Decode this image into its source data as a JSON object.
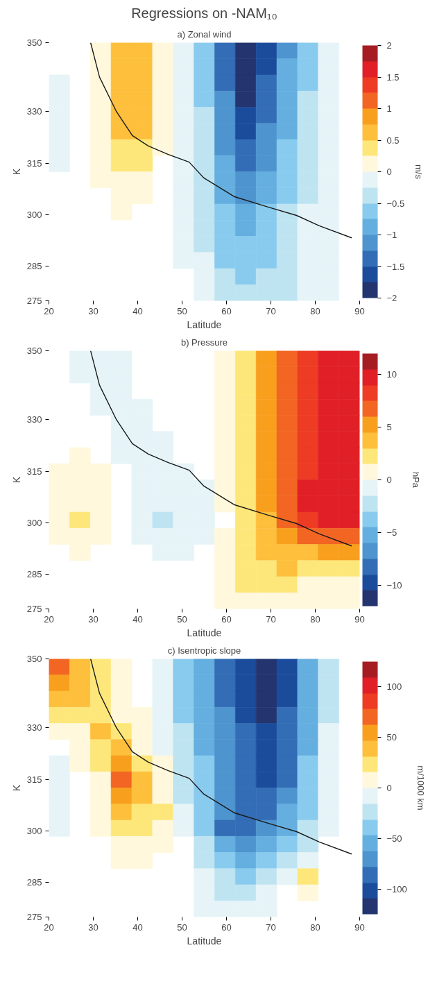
{
  "chart_data": [
    {
      "type": "heatmap",
      "title": "Regressions on -NAM₁₀",
      "subtitle": "a) Zonal wind",
      "xlabel": "Latitude",
      "ylabel": "K",
      "clabel": "m/s",
      "x": [
        22.33,
        27,
        31.67,
        36.33,
        41,
        45.67,
        50.33,
        55,
        59.67,
        64.33,
        69,
        73.67,
        78.33,
        83,
        87.67
      ],
      "y": [
        347.66,
        342.97,
        338.28,
        333.59,
        328.91,
        324.22,
        319.53,
        314.84,
        310.16,
        305.47,
        300.78,
        296.09,
        291.41,
        286.72,
        282.03,
        277.34
      ],
      "xlim": [
        20,
        90
      ],
      "xticks": [
        20,
        30,
        40,
        50,
        60,
        70,
        80,
        90
      ],
      "ylim": [
        275,
        350
      ],
      "yticks": [
        275,
        285,
        300,
        315,
        330,
        350
      ],
      "clim": [
        -2,
        2
      ],
      "cticks": [
        -2,
        -1.5,
        -1,
        -0.5,
        0,
        0.5,
        1,
        1.5,
        2
      ],
      "colors": [
        "#24346f",
        "#1b4c9c",
        "#336db6",
        "#4e94cf",
        "#64afdf",
        "#89cbee",
        "#bfe4f1",
        "#e6f4f8",
        "#fff8dc",
        "#fee77a",
        "#fdbf3c",
        "#f8a01e",
        "#f26522",
        "#ee3b24",
        "#e11f26",
        "#a51d22"
      ],
      "cells": [
        [
          null,
          null,
          0.15,
          0.65,
          0.6,
          0.05,
          -0.1,
          -0.6,
          -1.4,
          -2.1,
          -1.7,
          -1.05,
          -0.55,
          -0.2,
          null
        ],
        [
          null,
          null,
          0.15,
          0.65,
          0.6,
          0.05,
          -0.1,
          -0.58,
          -1.35,
          -2.0,
          -1.6,
          -1.0,
          -0.55,
          -0.2,
          null
        ],
        [
          -0.1,
          null,
          0.15,
          0.65,
          0.6,
          0.05,
          -0.1,
          -0.55,
          -1.3,
          -1.9,
          -1.5,
          -0.95,
          -0.52,
          -0.18,
          null
        ],
        [
          -0.1,
          null,
          0.15,
          0.65,
          0.6,
          0.05,
          -0.1,
          -0.52,
          -1.25,
          -1.8,
          -1.42,
          -0.9,
          -0.5,
          -0.18,
          null
        ],
        [
          -0.1,
          null,
          0.15,
          0.65,
          0.6,
          0.05,
          -0.1,
          -0.5,
          -1.2,
          -1.7,
          -1.35,
          -0.85,
          -0.5,
          -0.15,
          null
        ],
        [
          -0.1,
          null,
          0.15,
          0.55,
          0.5,
          0.05,
          -0.1,
          -0.48,
          -1.12,
          -1.6,
          -1.25,
          -0.8,
          -0.45,
          -0.15,
          null
        ],
        [
          -0.1,
          null,
          0.15,
          0.45,
          0.4,
          0.05,
          -0.1,
          -0.45,
          -1.05,
          -1.45,
          -1.15,
          -0.75,
          -0.42,
          -0.15,
          null
        ],
        [
          -0.05,
          null,
          0.15,
          0.3,
          0.3,
          null,
          -0.1,
          -0.42,
          -0.98,
          -1.3,
          -1.05,
          -0.68,
          -0.38,
          -0.15,
          null
        ],
        [
          null,
          null,
          0.1,
          0.2,
          0.15,
          null,
          -0.1,
          -0.4,
          -0.9,
          -1.15,
          -0.95,
          -0.6,
          -0.35,
          -0.15,
          null
        ],
        [
          null,
          null,
          null,
          0.1,
          0.05,
          null,
          -0.1,
          -0.38,
          -0.82,
          -1.05,
          -0.85,
          -0.52,
          -0.3,
          -0.15,
          null
        ],
        [
          null,
          null,
          null,
          0.05,
          null,
          null,
          -0.1,
          -0.35,
          -0.75,
          -0.95,
          -0.75,
          -0.45,
          -0.25,
          -0.15,
          null
        ],
        [
          null,
          null,
          null,
          null,
          null,
          null,
          -0.1,
          -0.32,
          -0.68,
          -0.85,
          -0.68,
          -0.4,
          -0.22,
          -0.15,
          null
        ],
        [
          null,
          null,
          null,
          null,
          null,
          null,
          -0.05,
          -0.3,
          -0.6,
          -0.72,
          -0.6,
          -0.35,
          -0.2,
          -0.15,
          null
        ],
        [
          null,
          null,
          null,
          null,
          null,
          null,
          -0.05,
          -0.25,
          -0.52,
          -0.65,
          -0.52,
          -0.32,
          -0.2,
          -0.15,
          null
        ],
        [
          null,
          null,
          null,
          null,
          null,
          null,
          null,
          -0.2,
          -0.45,
          -0.55,
          -0.45,
          -0.3,
          -0.2,
          -0.15,
          null
        ],
        [
          null,
          null,
          null,
          null,
          null,
          null,
          null,
          -0.15,
          -0.4,
          -0.48,
          -0.4,
          -0.3,
          -0.2,
          -0.15,
          null
        ]
      ],
      "series": [
        {
          "type": "line",
          "color": "#1a1a1a",
          "x": [
            29.4,
            31.4,
            35.2,
            38.8,
            42.4,
            46.9,
            51.6,
            54.9,
            61.7,
            69.5,
            75.8,
            80.9,
            88.2
          ],
          "values": [
            350,
            340,
            330,
            323,
            320,
            317.5,
            315.3,
            310.7,
            305.3,
            302.2,
            299.8,
            296.8,
            293.3
          ]
        }
      ]
    },
    {
      "type": "heatmap",
      "title": "b) Pressure",
      "xlabel": "Latitude",
      "ylabel": "K",
      "clabel": "hPa",
      "x": [
        22.33,
        27,
        31.67,
        36.33,
        41,
        45.67,
        50.33,
        55,
        59.67,
        64.33,
        69,
        73.67,
        78.33,
        83,
        87.67
      ],
      "y": [
        347.66,
        342.97,
        338.28,
        333.59,
        328.91,
        324.22,
        319.53,
        314.84,
        310.16,
        305.47,
        300.78,
        296.09,
        291.41,
        286.72,
        282.03,
        277.34
      ],
      "xlim": [
        20,
        90
      ],
      "xticks": [
        20,
        30,
        40,
        50,
        60,
        70,
        80,
        90
      ],
      "ylim": [
        275,
        350
      ],
      "yticks": [
        275,
        285,
        300,
        315,
        330,
        350
      ],
      "clim": [
        -12,
        12
      ],
      "cticks": [
        -10,
        -5,
        0,
        5,
        10
      ],
      "colors": [
        "#24346f",
        "#1b4c9c",
        "#336db6",
        "#4e94cf",
        "#64afdf",
        "#89cbee",
        "#bfe4f1",
        "#e6f4f8",
        "#fff8dc",
        "#fee77a",
        "#fdbf3c",
        "#f8a01e",
        "#f26522",
        "#ee3b24",
        "#e11f26",
        "#a51d22"
      ],
      "cells": [
        [
          null,
          -0.3,
          -0.5,
          -0.5,
          null,
          null,
          null,
          null,
          0.3,
          2.7,
          5.2,
          7.3,
          8.7,
          9.8,
          10.2
        ],
        [
          null,
          -0.2,
          -0.5,
          -0.5,
          null,
          null,
          null,
          null,
          0.3,
          2.7,
          5.2,
          7.3,
          8.7,
          9.8,
          10.2
        ],
        [
          null,
          null,
          -0.4,
          -0.5,
          null,
          null,
          null,
          null,
          0.3,
          2.7,
          5.1,
          7.3,
          8.7,
          9.8,
          10.2
        ],
        [
          null,
          null,
          -0.2,
          -0.5,
          -0.1,
          null,
          null,
          null,
          0.3,
          2.6,
          5.1,
          7.2,
          8.8,
          9.9,
          10.2
        ],
        [
          null,
          null,
          null,
          -0.5,
          -0.2,
          null,
          null,
          null,
          0.3,
          2.6,
          5.0,
          7.2,
          8.8,
          9.9,
          10.2
        ],
        [
          null,
          null,
          null,
          -0.3,
          -0.4,
          -0.2,
          null,
          null,
          0.3,
          2.5,
          4.9,
          7.2,
          8.8,
          9.9,
          10.2
        ],
        [
          null,
          0.2,
          null,
          -0.1,
          -0.5,
          -0.4,
          null,
          null,
          0.4,
          2.5,
          4.9,
          7.1,
          8.9,
          10.0,
          10.2
        ],
        [
          0.3,
          0.6,
          0.5,
          null,
          -0.5,
          -0.5,
          -0.2,
          null,
          0.4,
          2.4,
          4.8,
          7.1,
          8.9,
          10.0,
          10.2
        ],
        [
          0.4,
          0.8,
          0.5,
          null,
          -0.5,
          -0.6,
          -0.4,
          -0.1,
          0.5,
          2.3,
          4.7,
          7.0,
          9.0,
          10.0,
          10.1
        ],
        [
          0.5,
          1.0,
          0.5,
          null,
          -0.6,
          -0.8,
          -0.6,
          -0.3,
          0.5,
          2.2,
          4.6,
          7.0,
          9.1,
          10.0,
          10.0
        ],
        [
          0.5,
          1.6,
          0.4,
          null,
          -0.6,
          -1.6,
          -1.4,
          -0.5,
          null,
          2.3,
          4.4,
          6.2,
          8.5,
          9.3,
          9.2
        ],
        [
          0.3,
          0.4,
          0.1,
          null,
          -0.4,
          -0.8,
          -0.7,
          -0.2,
          0.2,
          2.6,
          4.0,
          5.0,
          6.1,
          7.0,
          7.4
        ],
        [
          null,
          0.2,
          null,
          null,
          null,
          -0.4,
          -0.3,
          null,
          0.3,
          2.9,
          3.4,
          3.8,
          4.3,
          4.6,
          4.8
        ],
        [
          null,
          null,
          null,
          null,
          null,
          null,
          null,
          null,
          0.8,
          2.8,
          2.9,
          3.0,
          2.6,
          2.9,
          2.8
        ],
        [
          null,
          null,
          null,
          null,
          null,
          null,
          null,
          null,
          1.2,
          1.6,
          1.5,
          1.6,
          1.1,
          1.3,
          1.2
        ],
        [
          null,
          null,
          null,
          null,
          null,
          null,
          null,
          null,
          1.0,
          0.5,
          0.4,
          0.3,
          0.1,
          0.6,
          0.8
        ]
      ],
      "series": [
        {
          "type": "line",
          "color": "#1a1a1a",
          "x": [
            29.4,
            31.4,
            35.2,
            38.8,
            42.4,
            46.9,
            51.6,
            54.9,
            61.7,
            69.5,
            75.8,
            80.9,
            88.2
          ],
          "values": [
            350,
            340,
            330,
            323,
            320,
            317.5,
            315.3,
            310.7,
            305.3,
            302.2,
            299.8,
            296.8,
            293.3
          ]
        }
      ]
    },
    {
      "type": "heatmap",
      "title": "c) Isentropic slope",
      "xlabel": "Latitude",
      "ylabel": "K",
      "clabel": "m/1000 km",
      "x": [
        22.33,
        27,
        31.67,
        36.33,
        41,
        45.67,
        50.33,
        55,
        59.67,
        64.33,
        69,
        73.67,
        78.33,
        83,
        87.67
      ],
      "y": [
        347.66,
        342.97,
        338.28,
        333.59,
        328.91,
        324.22,
        319.53,
        314.84,
        310.16,
        305.47,
        300.78,
        296.09,
        291.41,
        286.72,
        282.03,
        277.34
      ],
      "xlim": [
        20,
        90
      ],
      "xticks": [
        20,
        30,
        40,
        50,
        60,
        70,
        80,
        90
      ],
      "ylim": [
        275,
        350
      ],
      "yticks": [
        275,
        285,
        300,
        315,
        330,
        350
      ],
      "clim": [
        -125,
        125
      ],
      "cticks": [
        -100,
        -50,
        0,
        50,
        100
      ],
      "colors": [
        "#24346f",
        "#1b4c9c",
        "#336db6",
        "#4e94cf",
        "#64afdf",
        "#89cbee",
        "#bfe4f1",
        "#e6f4f8",
        "#fff8dc",
        "#fee77a",
        "#fdbf3c",
        "#f8a01e",
        "#f26522",
        "#ee3b24",
        "#e11f26",
        "#a51d22"
      ],
      "cells": [
        [
          70,
          40,
          20,
          5,
          null,
          -10,
          -40,
          -60,
          -85,
          -105,
          -120,
          -100,
          -55,
          -20,
          null
        ],
        [
          55,
          38,
          22,
          8,
          null,
          -10,
          -38,
          -58,
          -82,
          -100,
          -118,
          -98,
          -55,
          -20,
          null
        ],
        [
          40,
          32,
          25,
          10,
          null,
          -10,
          -35,
          -55,
          -80,
          -98,
          -115,
          -95,
          -52,
          -18,
          null
        ],
        [
          25,
          25,
          28,
          15,
          5,
          -8,
          -32,
          -52,
          -78,
          -95,
          -110,
          -92,
          -50,
          -18,
          null
        ],
        [
          10,
          15,
          35,
          20,
          8,
          -5,
          -30,
          -50,
          -75,
          -92,
          -105,
          -90,
          -50,
          -15,
          null
        ],
        [
          null,
          10,
          25,
          35,
          15,
          -3,
          -28,
          -48,
          -72,
          -88,
          -102,
          -88,
          -48,
          -15,
          null
        ],
        [
          -5,
          5,
          20,
          50,
          30,
          5,
          -25,
          -45,
          -70,
          -85,
          -98,
          -85,
          -45,
          -15,
          null
        ],
        [
          -8,
          null,
          15,
          70,
          40,
          10,
          -22,
          -42,
          -68,
          -85,
          -95,
          -80,
          -42,
          -12,
          null
        ],
        [
          -8,
          null,
          10,
          50,
          35,
          15,
          -18,
          -40,
          -65,
          -85,
          -88,
          -72,
          -40,
          -10,
          null
        ],
        [
          -8,
          null,
          8,
          35,
          30,
          20,
          -12,
          -38,
          -68,
          -88,
          -82,
          -62,
          -35,
          -8,
          null
        ],
        [
          -5,
          null,
          5,
          20,
          20,
          15,
          -5,
          -35,
          -80,
          -80,
          -70,
          -50,
          -30,
          -5,
          null
        ],
        [
          null,
          null,
          null,
          10,
          8,
          10,
          null,
          -28,
          -60,
          -65,
          -60,
          -40,
          -20,
          null,
          null
        ],
        [
          null,
          null,
          null,
          5,
          5,
          null,
          null,
          -20,
          -45,
          -55,
          -45,
          -25,
          -10,
          null,
          null
        ],
        [
          null,
          null,
          null,
          null,
          null,
          null,
          null,
          -12,
          -30,
          -40,
          -30,
          -10,
          20,
          null,
          null
        ],
        [
          null,
          null,
          null,
          null,
          null,
          null,
          null,
          -8,
          -20,
          -28,
          -15,
          null,
          8,
          null,
          null
        ],
        [
          null,
          null,
          null,
          null,
          null,
          null,
          null,
          -5,
          -12,
          -15,
          -8,
          null,
          null,
          null,
          null
        ]
      ],
      "series": [
        {
          "type": "line",
          "color": "#1a1a1a",
          "x": [
            29.4,
            31.4,
            35.2,
            38.8,
            42.4,
            46.9,
            51.6,
            54.9,
            61.7,
            69.5,
            75.8,
            80.9,
            88.2
          ],
          "values": [
            350,
            340,
            330,
            323,
            320,
            317.5,
            315.3,
            310.7,
            305.3,
            302.2,
            299.8,
            296.8,
            293.3
          ]
        }
      ]
    }
  ]
}
